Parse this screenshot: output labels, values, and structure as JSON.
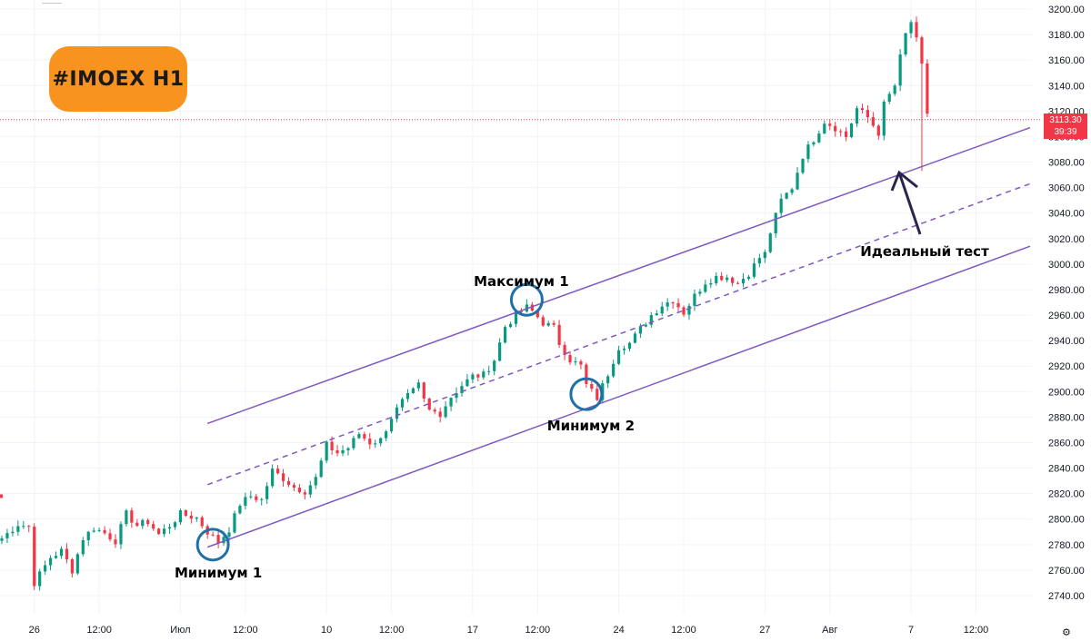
{
  "title_badge": "#IMOEX H1",
  "price_label": {
    "price": "3113.30",
    "countdown": "39:39"
  },
  "settings_icon": "gear-icon",
  "colors": {
    "up": "#089981",
    "down": "#f23645",
    "channel": "#7e57c2",
    "circle": "#1f6fa8",
    "badge": "#f7931e",
    "price_line": "#f23645"
  },
  "chart_data": {
    "type": "candlestick",
    "y_axis": {
      "range": [
        2730,
        3205
      ],
      "ticks": [
        2740,
        2760,
        2780,
        2800,
        2820,
        2840,
        2860,
        2880,
        2900,
        2920,
        2940,
        2960,
        2980,
        3000,
        3020,
        3040,
        3060,
        3080,
        3100,
        3120,
        3140,
        3160,
        3180,
        3200
      ],
      "tick_labels": [
        "2740.00",
        "2760.00",
        "2780.00",
        "2800.00",
        "2820.00",
        "2840.00",
        "2860.00",
        "2880.00",
        "2900.00",
        "2920.00",
        "2940.00",
        "2960.00",
        "2980.00",
        "3000.00",
        "3020.00",
        "3040.00",
        "3060.00",
        "3080.00",
        "3100.00",
        "3120.00",
        "3140.00",
        "3160.00",
        "3180.00",
        "3200.00"
      ]
    },
    "x_axis": {
      "range": [
        0,
        190
      ],
      "ticks": [
        {
          "x": 6,
          "label": "26"
        },
        {
          "x": 18,
          "label": "12:00"
        },
        {
          "x": 33,
          "label": "Июл"
        },
        {
          "x": 45,
          "label": "12:00"
        },
        {
          "x": 60,
          "label": "10"
        },
        {
          "x": 72,
          "label": "12:00"
        },
        {
          "x": 87,
          "label": "17"
        },
        {
          "x": 99,
          "label": "12:00"
        },
        {
          "x": 114,
          "label": "24"
        },
        {
          "x": 126,
          "label": "12:00"
        },
        {
          "x": 141,
          "label": "27"
        },
        {
          "x": 153,
          "label": "Авг"
        },
        {
          "x": 168,
          "label": "7"
        },
        {
          "x": 180,
          "label": "12:00"
        }
      ]
    },
    "price_anchors": [
      [
        0,
        2785
      ],
      [
        3,
        2796
      ],
      [
        5,
        2794
      ],
      [
        6,
        2750
      ],
      [
        9,
        2770
      ],
      [
        11,
        2775
      ],
      [
        13,
        2760
      ],
      [
        15,
        2785
      ],
      [
        17,
        2793
      ],
      [
        19,
        2789
      ],
      [
        21,
        2783
      ],
      [
        23,
        2804
      ],
      [
        25,
        2795
      ],
      [
        27,
        2798
      ],
      [
        29,
        2788
      ],
      [
        31,
        2795
      ],
      [
        33,
        2804
      ],
      [
        36,
        2801
      ],
      [
        38,
        2790
      ],
      [
        40,
        2782
      ],
      [
        42,
        2792
      ],
      [
        44,
        2812
      ],
      [
        46,
        2818
      ],
      [
        48,
        2815
      ],
      [
        50,
        2838
      ],
      [
        52,
        2832
      ],
      [
        54,
        2825
      ],
      [
        56,
        2822
      ],
      [
        58,
        2832
      ],
      [
        60,
        2858
      ],
      [
        62,
        2852
      ],
      [
        64,
        2856
      ],
      [
        66,
        2867
      ],
      [
        68,
        2860
      ],
      [
        70,
        2862
      ],
      [
        72,
        2880
      ],
      [
        74,
        2892
      ],
      [
        76,
        2900
      ],
      [
        77,
        2905
      ],
      [
        78,
        2893
      ],
      [
        79,
        2885
      ],
      [
        81,
        2883
      ],
      [
        83,
        2896
      ],
      [
        85,
        2905
      ],
      [
        87,
        2912
      ],
      [
        89,
        2913
      ],
      [
        91,
        2925
      ],
      [
        93,
        2951
      ],
      [
        95,
        2960
      ],
      [
        97,
        2966
      ],
      [
        98,
        2963
      ],
      [
        100,
        2954
      ],
      [
        102,
        2950
      ],
      [
        103,
        2938
      ],
      [
        105,
        2925
      ],
      [
        107,
        2920
      ],
      [
        108,
        2905
      ],
      [
        110,
        2895
      ],
      [
        112,
        2914
      ],
      [
        114,
        2935
      ],
      [
        116,
        2938
      ],
      [
        118,
        2949
      ],
      [
        120,
        2960
      ],
      [
        122,
        2968
      ],
      [
        124,
        2972
      ],
      [
        126,
        2962
      ],
      [
        128,
        2975
      ],
      [
        130,
        2986
      ],
      [
        132,
        2990
      ],
      [
        134,
        2990
      ],
      [
        136,
        2985
      ],
      [
        138,
        2993
      ],
      [
        140,
        3005
      ],
      [
        141,
        3008
      ],
      [
        142,
        3025
      ],
      [
        144,
        3050
      ],
      [
        146,
        3060
      ],
      [
        148,
        3085
      ],
      [
        150,
        3098
      ],
      [
        152,
        3112
      ],
      [
        154,
        3107
      ],
      [
        156,
        3100
      ],
      [
        158,
        3122
      ],
      [
        160,
        3115
      ],
      [
        162,
        3103
      ],
      [
        163,
        3125
      ],
      [
        165,
        3140
      ],
      [
        166,
        3162
      ],
      [
        167,
        3180
      ],
      [
        168,
        3190
      ],
      [
        169,
        3175
      ],
      [
        170,
        3155
      ],
      [
        171,
        3118
      ]
    ],
    "annotations": [
      {
        "id": "min1",
        "text": "Минимум 1"
      },
      {
        "id": "max1",
        "text": "Максимум 1"
      },
      {
        "id": "min2",
        "text": "Минимум 2"
      },
      {
        "id": "ideal",
        "text": "Идеальный тест"
      }
    ],
    "channel": {
      "upper": [
        [
          38,
          2875
        ],
        [
          190,
          3107
        ]
      ],
      "middle": [
        [
          38,
          2827
        ],
        [
          190,
          3063
        ]
      ],
      "lower": [
        [
          38,
          2778
        ],
        [
          190,
          3014
        ]
      ]
    },
    "current_price": 3113.3
  }
}
